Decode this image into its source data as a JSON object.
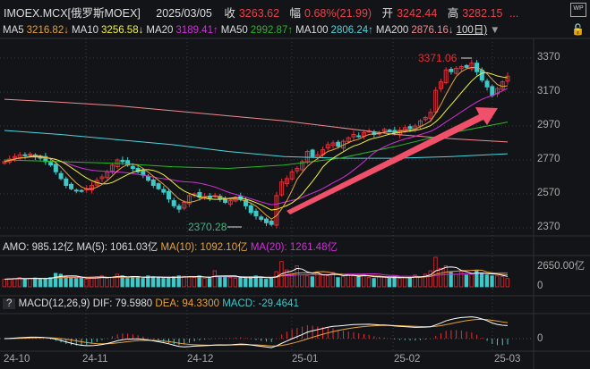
{
  "header": {
    "symbol": "IMOEX.MCX[俄罗斯MOEX]",
    "date": "2025/03/05",
    "close_label": "收",
    "close": "3263.62",
    "change_label": "幅",
    "change": "0.68%(21.99)",
    "open_label": "开",
    "open": "3242.44",
    "high_label": "高",
    "high": "3282.15",
    "more": "...",
    "wp_icon": "WP"
  },
  "ma_row": {
    "items": [
      {
        "label": "MA5",
        "value": "3216.82↓",
        "color": "#e8a23a"
      },
      {
        "label": "MA10",
        "value": "3256.58↓",
        "color": "#f2f23a"
      },
      {
        "label": "MA20",
        "value": "3189.41↑",
        "color": "#d030d8"
      },
      {
        "label": "MA50",
        "value": "2992.87↑",
        "color": "#28b828"
      },
      {
        "label": "MA100",
        "value": "2806.24↑",
        "color": "#4cd6e0"
      },
      {
        "label": "MA200",
        "value": "2876.16↓",
        "color": "#f08a90"
      }
    ],
    "period": "100日)",
    "period_icon": "triangle-down",
    "lock_icon": "lock"
  },
  "volume": {
    "label_amo": "AMO: 985.12亿",
    "label_ma5": "MA(5): 1061.03亿",
    "label_ma10": "MA(10): 1092.10亿",
    "label_ma20": "MA(20): 1261.48亿",
    "axis_top": "2650.00亿",
    "axis_zero": "0"
  },
  "macd": {
    "help": "?",
    "title": "MACD(12,26,9)",
    "dif": "DIF: 79.5980",
    "dea": "DEA: 94.3300",
    "macd": "MACD: -29.4641",
    "axis_zero": "0"
  },
  "colors": {
    "up": "#e0303a",
    "down": "#3fc8c8",
    "arrow": "#f0506a",
    "bg": "#131417"
  },
  "chart_data": {
    "type": "candlestick",
    "x_ticks": [
      "24-10",
      "24-11",
      "24-12",
      "25-01",
      "25-02",
      "25-03"
    ],
    "y_ticks": [
      "3370",
      "3170",
      "2970",
      "2770",
      "2570",
      "2370"
    ],
    "ylim": [
      2330,
      3420
    ],
    "annotations": [
      {
        "text": "3371.06",
        "kind": "high"
      },
      {
        "text": "2370.28",
        "kind": "low"
      }
    ],
    "closes": [
      2760,
      2775,
      2790,
      2800,
      2795,
      2805,
      2790,
      2780,
      2760,
      2740,
      2700,
      2660,
      2620,
      2600,
      2590,
      2585,
      2600,
      2620,
      2650,
      2670,
      2700,
      2740,
      2770,
      2760,
      2740,
      2720,
      2700,
      2680,
      2650,
      2620,
      2600,
      2580,
      2540,
      2500,
      2480,
      2520,
      2560,
      2570,
      2550,
      2555,
      2545,
      2560,
      2540,
      2520,
      2530,
      2550,
      2540,
      2500,
      2460,
      2440,
      2420,
      2400,
      2390,
      2560,
      2640,
      2660,
      2700,
      2720,
      2760,
      2820,
      2790,
      2800,
      2830,
      2860,
      2870,
      2850,
      2880,
      2900,
      2920,
      2910,
      2930,
      2940,
      2920,
      2930,
      2950,
      2940,
      2930,
      2945,
      2960,
      2955,
      2970,
      3000,
      3020,
      3050,
      3180,
      3230,
      3300,
      3290,
      3310,
      3320,
      3315,
      3340,
      3290,
      3240,
      3200,
      3150,
      3190,
      3230,
      3263.62
    ],
    "ma50_anchor": [
      2770,
      2760,
      2750,
      2730,
      2720,
      2740,
      2780,
      2850,
      2930,
      2992.87
    ],
    "ma100_anchor": [
      2944,
      2920,
      2890,
      2860,
      2820,
      2790,
      2780,
      2780,
      2790,
      2806.24
    ],
    "ma200_anchor": [
      3127,
      3110,
      3090,
      3060,
      3030,
      3000,
      2960,
      2920,
      2895,
      2876.16
    ],
    "volumes": [
      900,
      950,
      1000,
      1100,
      900,
      1000,
      1050,
      950,
      1000,
      1100,
      1600,
      1500,
      1200,
      1100,
      1000,
      1050,
      900,
      1100,
      1200,
      1300,
      1000,
      1100,
      1500,
      1300,
      1000,
      1200,
      1100,
      1000,
      1300,
      1200,
      1100,
      1000,
      1100,
      1200,
      1300,
      1250,
      1200,
      1100,
      1300,
      1000,
      1000,
      1900,
      1200,
      1300,
      1100,
      1000,
      1100,
      1000,
      1200,
      1300,
      1000,
      900,
      1000,
      1800,
      3000,
      2000,
      1600,
      2500,
      1400,
      1300,
      1200,
      1800,
      1400,
      1300,
      1700,
      1100,
      1200,
      1500,
      1300,
      1200,
      1400,
      1100,
      1000,
      1200,
      1100,
      1000,
      1200,
      1000,
      1100,
      1100,
      1400,
      1200,
      1500,
      1900,
      3500,
      2200,
      2500,
      1700,
      1500,
      1800,
      1400,
      1500,
      1900,
      1600,
      1400,
      1300,
      1300,
      1200,
      985
    ],
    "volume_axis": [
      0,
      2650
    ]
  }
}
